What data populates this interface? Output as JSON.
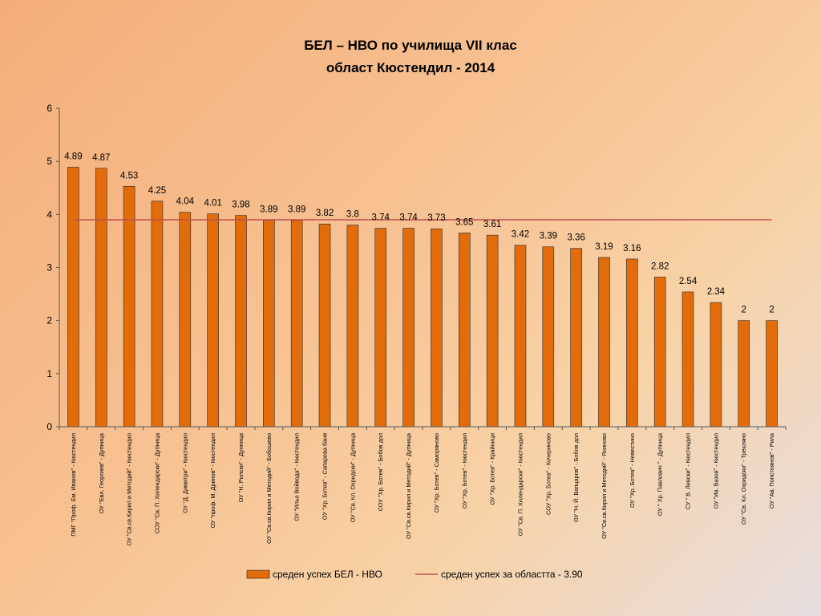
{
  "chart_data": {
    "type": "bar",
    "title_lines": [
      "БЕЛ – НВО по училища VII клас",
      "област Кюстендил  -  2014"
    ],
    "categories": [
      "ПМГ \"Проф. Ем. Иванов\" - Кюстендил",
      "ОУ \"Евл. Георгиев\" - Дупница",
      "ОУ \"Св.св.Кирил и Методий\" - Кюстендил",
      "СОУ \"Св. П. Хилендарски\" - Дупница",
      "ОУ \"Д. Димитри\" - Кюстендил",
      "ОУ \"проф. М. Дринов\" - Кюстендил",
      "ОУ \"Н. Рилски\" - Дупница",
      "ОУ \"Св.св.Кирил и Методий\" - Бобошево",
      "ОУ \"Ильо Войвода\" - Кюстендил",
      "ОУ \"Хр. Ботев\" - Сапарева баня",
      "ОУ \"Св. Кл. Охридски\" - Дупница",
      "СОУ \"Хр. Ботев\" - Бобов дол",
      "ОУ \"Св.св.Кирил и Методий\" - Дупница",
      "ОУ \"Хр. Ботев\" - Саморяново",
      "ОУ \"Хр. Ботев\" - Кюстендил",
      "ОУ \"Хр. Ботев\" - Крайници",
      "ОУ \"Св. П. Хилендарски\" - Кюстендил",
      "СОУ \"Хр. Ботев\" - Кочериново",
      "ОУ \"Н. Й. Вапцаров\" - Бобов дол",
      "ОУ \"Св.св.Кирил и Методий\" - Яхиново",
      "ОУ \"Хр. Ботев\" - Невестино",
      "ОУ \" Хр. Павлович \" - Дупница",
      "СУ \" В. Левски\" - Кюстендил",
      "ОУ \"Ив. Вазов\" - Кюстендил",
      "ОУ \"Св. Кл. Охридски\" - Трекляно",
      "ОУ \"Ав. Попстоянов\" - Рила"
    ],
    "series": [
      {
        "name": "среден успех  БЕЛ - НВО",
        "values": [
          4.89,
          4.87,
          4.53,
          4.25,
          4.04,
          4.01,
          3.98,
          3.89,
          3.89,
          3.82,
          3.8,
          3.74,
          3.74,
          3.73,
          3.65,
          3.61,
          3.42,
          3.39,
          3.36,
          3.19,
          3.16,
          2.82,
          2.54,
          2.34,
          2,
          2
        ],
        "data_labels": [
          "4.89",
          "4.87",
          "4.53",
          "4.25",
          "4.04",
          "4.01",
          "3.98",
          "3.89",
          "3.89",
          "3.82",
          "3.8",
          "3.74",
          "3.74",
          "3.73",
          "3.65",
          "3.61",
          "3.42",
          "3.39",
          "3.36",
          "3.19",
          "3.16",
          "2.82",
          "2.54",
          "2.34",
          "2",
          "2"
        ],
        "color": "#e36c0a"
      }
    ],
    "reference_line": {
      "name": "среден успех за областта - 3.90",
      "value": 3.9,
      "color": "#c0504d"
    },
    "ylim": [
      0,
      6
    ],
    "yticks": [
      0,
      1,
      2,
      3,
      4,
      5,
      6
    ],
    "ytick_labels": [
      "0",
      "1",
      "2",
      "3",
      "4",
      "5",
      "6"
    ],
    "grid": false,
    "legend_position": "bottom"
  }
}
